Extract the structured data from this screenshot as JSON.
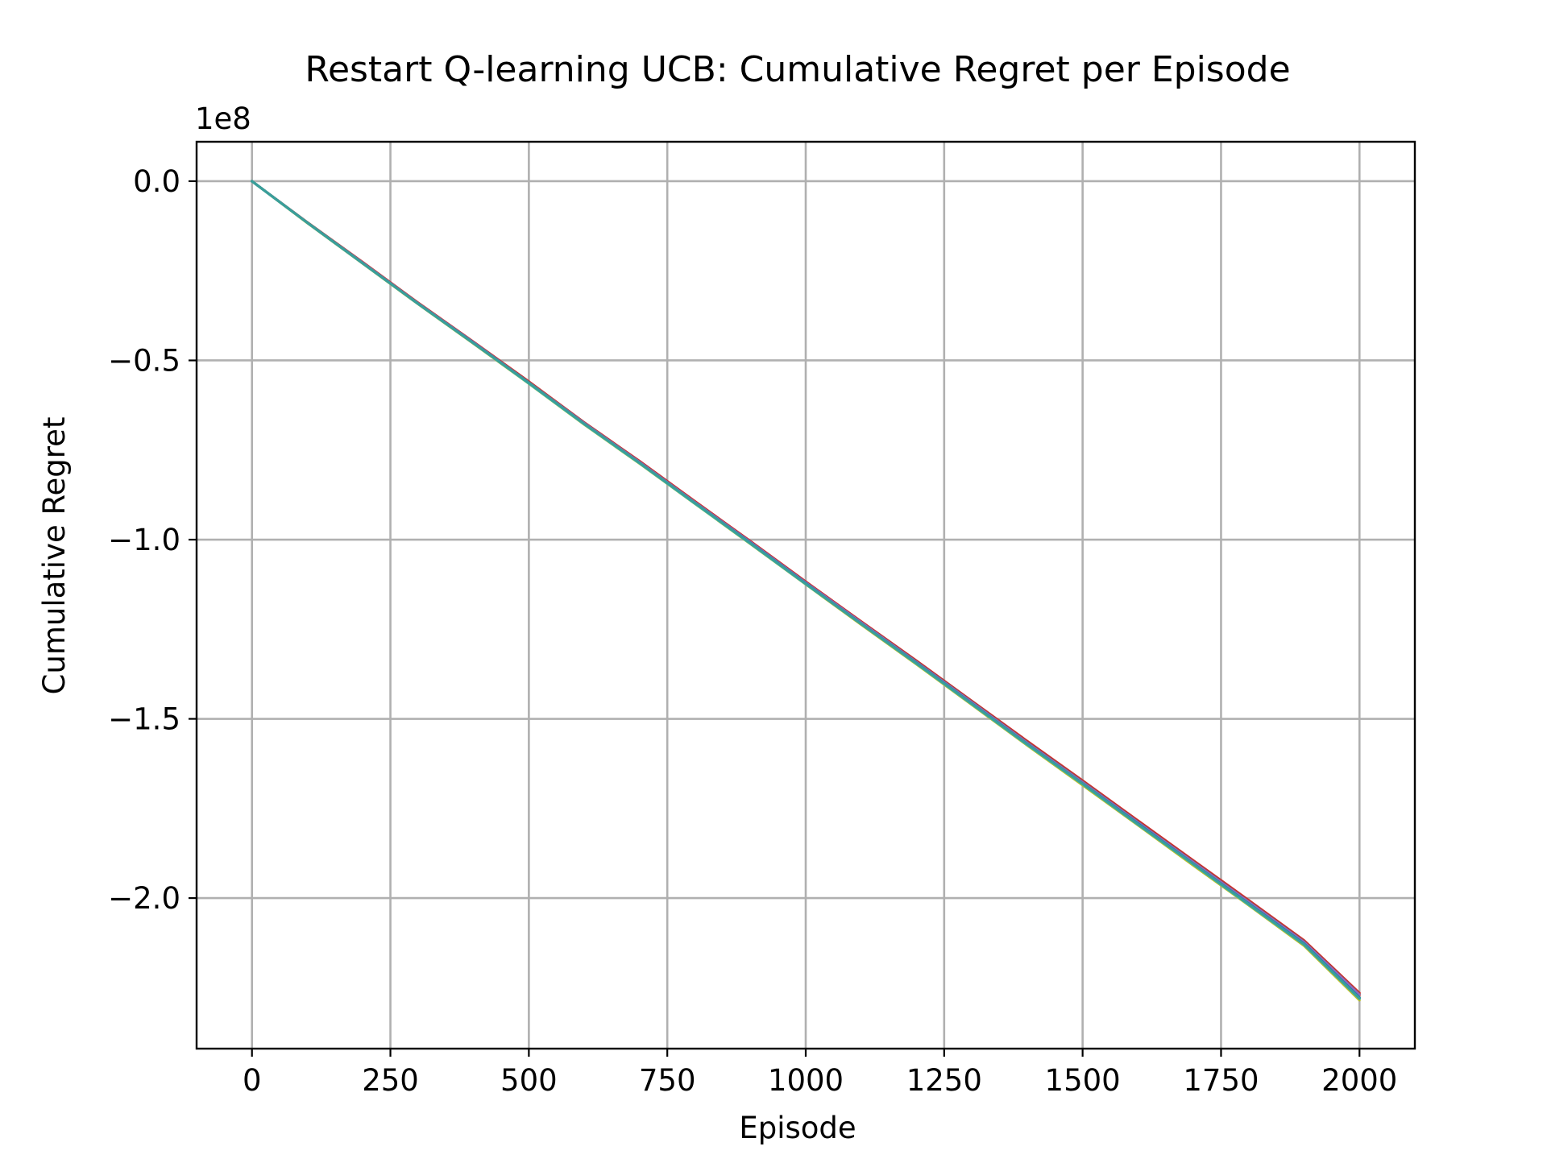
{
  "chart_data": {
    "type": "line",
    "title": "Restart Q-learning UCB: Cumulative Regret per Episode",
    "xlabel": "Episode",
    "ylabel": "Cumulative Regret",
    "y_offset_label": "1e8",
    "y_scale": 100000000,
    "xlim": [
      -100,
      2100
    ],
    "ylim": [
      -2.42,
      0.11
    ],
    "grid": true,
    "legend": "none",
    "x_ticks": [
      {
        "value": 0,
        "label": "0"
      },
      {
        "value": 250,
        "label": "250"
      },
      {
        "value": 500,
        "label": "500"
      },
      {
        "value": 750,
        "label": "750"
      },
      {
        "value": 1000,
        "label": "1000"
      },
      {
        "value": 1250,
        "label": "1250"
      },
      {
        "value": 1500,
        "label": "1500"
      },
      {
        "value": 1750,
        "label": "1750"
      },
      {
        "value": 2000,
        "label": "2000"
      }
    ],
    "y_ticks": [
      {
        "value": 0.0,
        "label": "0.0"
      },
      {
        "value": -0.5,
        "label": "−0.5"
      },
      {
        "value": -1.0,
        "label": "−1.0"
      },
      {
        "value": -1.5,
        "label": "−1.5"
      },
      {
        "value": -2.0,
        "label": "−2.0"
      }
    ],
    "x": [
      0,
      100,
      200,
      300,
      400,
      500,
      600,
      700,
      800,
      900,
      1000,
      1100,
      1200,
      1300,
      1400,
      1500,
      1600,
      1700,
      1800,
      1900,
      2000
    ],
    "series": [
      {
        "color": "#d62728",
        "values": [
          0.0,
          -0.115,
          -0.226,
          -0.339,
          -0.448,
          -0.559,
          -0.673,
          -0.781,
          -0.893,
          -1.004,
          -1.117,
          -1.228,
          -1.338,
          -1.45,
          -1.562,
          -1.672,
          -1.784,
          -1.895,
          -2.006,
          -2.118,
          -2.265
        ]
      },
      {
        "color": "#ff7f0e",
        "values": [
          0.0,
          -0.116,
          -0.228,
          -0.341,
          -0.451,
          -0.562,
          -0.676,
          -0.785,
          -0.897,
          -1.008,
          -1.121,
          -1.233,
          -1.343,
          -1.455,
          -1.568,
          -1.678,
          -1.791,
          -1.902,
          -2.013,
          -2.126,
          -2.272
        ]
      },
      {
        "color": "#8c564b",
        "values": [
          0.0,
          -0.115,
          -0.227,
          -0.34,
          -0.449,
          -0.561,
          -0.674,
          -0.783,
          -0.895,
          -1.006,
          -1.119,
          -1.23,
          -1.34,
          -1.452,
          -1.565,
          -1.675,
          -1.787,
          -1.898,
          -2.009,
          -2.121,
          -2.268
        ]
      },
      {
        "color": "#9467bd",
        "values": [
          0.0,
          -0.116,
          -0.228,
          -0.341,
          -0.45,
          -0.562,
          -0.675,
          -0.784,
          -0.896,
          -1.007,
          -1.12,
          -1.231,
          -1.342,
          -1.454,
          -1.567,
          -1.677,
          -1.789,
          -1.9,
          -2.011,
          -2.123,
          -2.27
        ]
      },
      {
        "color": "#bcbd22",
        "values": [
          0.0,
          -0.117,
          -0.23,
          -0.343,
          -0.453,
          -0.565,
          -0.679,
          -0.788,
          -0.9,
          -1.012,
          -1.125,
          -1.237,
          -1.348,
          -1.461,
          -1.574,
          -1.685,
          -1.797,
          -1.909,
          -2.02,
          -2.133,
          -2.285
        ]
      },
      {
        "color": "#2ca02c",
        "values": [
          0.0,
          -0.116,
          -0.229,
          -0.342,
          -0.452,
          -0.563,
          -0.677,
          -0.786,
          -0.898,
          -1.01,
          -1.123,
          -1.234,
          -1.345,
          -1.458,
          -1.571,
          -1.681,
          -1.793,
          -1.905,
          -2.016,
          -2.129,
          -2.279
        ]
      },
      {
        "color": "#1f77b4",
        "values": [
          0.0,
          -0.116,
          -0.229,
          -0.342,
          -0.451,
          -0.563,
          -0.677,
          -0.786,
          -0.898,
          -1.009,
          -1.122,
          -1.234,
          -1.344,
          -1.457,
          -1.57,
          -1.68,
          -1.792,
          -1.904,
          -2.015,
          -2.127,
          -2.277
        ]
      },
      {
        "color": "#17becf",
        "values": [
          0.0,
          -0.116,
          -0.229,
          -0.342,
          -0.452,
          -0.564,
          -0.678,
          -0.787,
          -0.899,
          -1.011,
          -1.124,
          -1.235,
          -1.346,
          -1.459,
          -1.572,
          -1.682,
          -1.795,
          -1.906,
          -2.018,
          -2.13,
          -2.281
        ]
      },
      {
        "color": "#3a9e9a",
        "values": [
          0.0,
          -0.116,
          -0.229,
          -0.342,
          -0.452,
          -0.563,
          -0.677,
          -0.786,
          -0.898,
          -1.01,
          -1.123,
          -1.235,
          -1.345,
          -1.458,
          -1.571,
          -1.681,
          -1.794,
          -1.905,
          -2.017,
          -2.129,
          -2.28
        ]
      }
    ]
  }
}
